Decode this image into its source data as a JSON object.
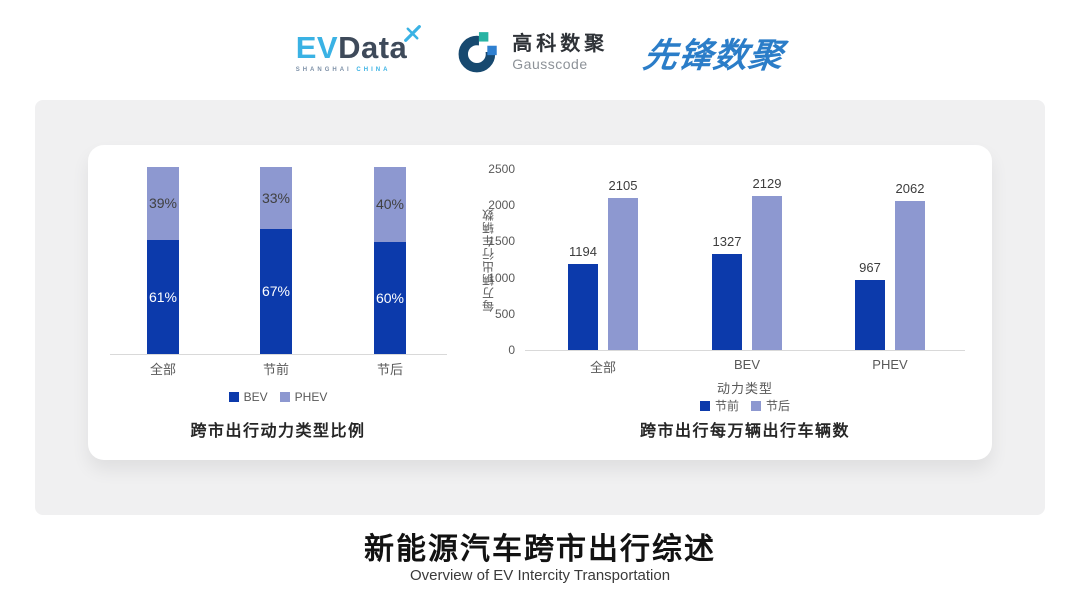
{
  "header": {
    "evdata": {
      "part1": "EV",
      "part2": "Data",
      "sub1": "SHANGHAI",
      "sub2": "CHINA"
    },
    "gausscode": {
      "cn": "高科数聚",
      "en": "Gausscode"
    },
    "xianfeng": {
      "text": "先锋数聚"
    }
  },
  "chart_data": [
    {
      "type": "bar",
      "subtype": "stacked-percent",
      "title": "跨市出行动力类型比例",
      "categories": [
        "全部",
        "节前",
        "节后"
      ],
      "series": [
        {
          "name": "BEV",
          "color": "#0c3aab",
          "text_color": "#ffffff",
          "values": [
            61,
            67,
            60
          ]
        },
        {
          "name": "PHEV",
          "color": "#8d98d0",
          "text_color": "#404040",
          "values": [
            39,
            33,
            40
          ]
        }
      ],
      "value_suffix": "%",
      "ylim": [
        0,
        100
      ],
      "legend_position": "bottom",
      "grid": false
    },
    {
      "type": "bar",
      "subtype": "grouped",
      "title": "跨市出行每万辆出行车辆数",
      "categories": [
        "全部",
        "BEV",
        "PHEV"
      ],
      "xlabel": "动力类型",
      "ylabel": "每万辆出行车辆数",
      "ylim": [
        0,
        2500
      ],
      "yticks": [
        0,
        500,
        1000,
        1500,
        2000,
        2500
      ],
      "series": [
        {
          "name": "节前",
          "color": "#0c3aab",
          "values": [
            1194,
            1327,
            967
          ]
        },
        {
          "name": "节后",
          "color": "#8d98d0",
          "values": [
            2105,
            2129,
            2062
          ]
        }
      ],
      "legend_position": "bottom",
      "grid": false
    }
  ],
  "footer": {
    "title": "新能源汽车跨市出行综述",
    "subtitle": "Overview of EV Intercity Transportation"
  },
  "colors": {
    "accent_dark_blue": "#0c3aab",
    "accent_light_blue": "#8d98d0",
    "evdata_blue": "#3ab2e4",
    "evdata_dark": "#3e4a5a",
    "gausscode_navy": "#17496f",
    "gausscode_teal": "#27b3a3",
    "gausscode_blue": "#2f80d0",
    "xianfeng_blue": "#2b7dc8",
    "panel_gray": "#f0f0f1"
  }
}
